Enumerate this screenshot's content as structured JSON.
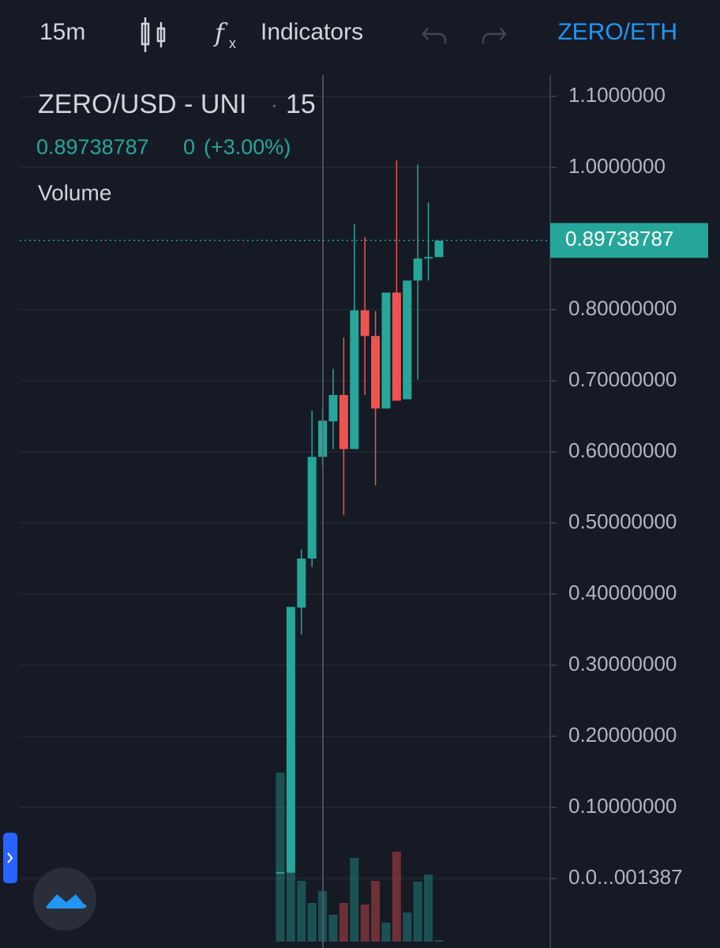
{
  "toolbar": {
    "interval": "15m",
    "indicators": "Indicators",
    "symbol": "ZERO/ETH"
  },
  "chart_data": {
    "type": "candlestick",
    "title": "ZERO/USD - UNI",
    "separator": "·",
    "resolution": "15",
    "last_price": 0.89738787,
    "change": "0",
    "change_pct": "(+3.00%)",
    "up_color": "#26a69a",
    "down_color": "#ef5350",
    "grid": true,
    "open": [
      0.007,
      0.008,
      0.381,
      0.45,
      0.593,
      0.643,
      0.68,
      0.604,
      0.799,
      0.763,
      0.661,
      0.824,
      0.674,
      0.841,
      0.872,
      0.874
    ],
    "high": [
      0.009,
      0.382,
      0.463,
      0.658,
      0.661,
      0.717,
      0.761,
      0.92,
      0.902,
      0.798,
      0.824,
      1.01,
      0.841,
      1.004,
      0.951,
      0.897
    ],
    "low": [
      0.007,
      0.008,
      0.343,
      0.438,
      0.581,
      0.604,
      0.511,
      0.604,
      0.68,
      0.553,
      0.661,
      0.672,
      0.674,
      0.702,
      0.841,
      0.874
    ],
    "close": [
      0.009,
      0.382,
      0.45,
      0.593,
      0.644,
      0.68,
      0.604,
      0.799,
      0.763,
      0.661,
      0.824,
      0.672,
      0.841,
      0.872,
      0.874,
      0.897
    ],
    "volume": {
      "name": "Volume",
      "values": [
        214,
        87,
        77,
        49,
        64,
        34,
        49,
        106,
        47,
        77,
        24,
        114,
        37,
        76,
        85,
        2
      ]
    },
    "ylim": [
      -0.0922,
      1.13
    ],
    "yticks": [
      {
        "value": 1.1,
        "label": "1.1000000"
      },
      {
        "value": 1.0,
        "label": "1.0000000"
      },
      {
        "value": 0.8,
        "label": "0.80000000"
      },
      {
        "value": 0.7,
        "label": "0.70000000"
      },
      {
        "value": 0.6,
        "label": "0.60000000"
      },
      {
        "value": 0.5,
        "label": "0.50000000"
      },
      {
        "value": 0.4,
        "label": "0.40000000"
      },
      {
        "value": 0.3,
        "label": "0.30000000"
      },
      {
        "value": 0.2,
        "label": "0.20000000"
      },
      {
        "value": 0.1,
        "label": "0.10000000"
      },
      {
        "value": 1.387e-06,
        "label": "0.0...001387"
      }
    ]
  }
}
